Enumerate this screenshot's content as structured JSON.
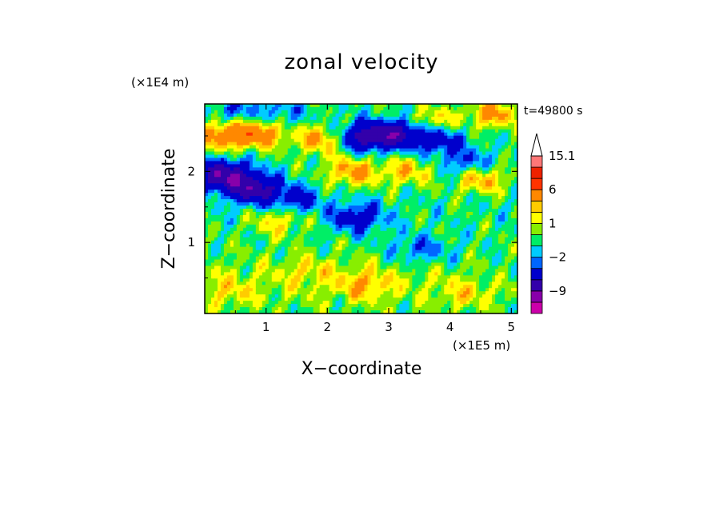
{
  "chart_data": {
    "type": "heatmap",
    "title": "zonal velocity",
    "xlabel": "X−coordinate",
    "ylabel": "Z−coordinate",
    "x_unit": "(×1E5 m)",
    "y_unit": "(×1E4 m)",
    "time_label": "t=49800 s",
    "xlim": [
      0,
      5.1
    ],
    "ylim": [
      0,
      2.95
    ],
    "x_ticks": [
      {
        "value": 1,
        "label": "1"
      },
      {
        "value": 2,
        "label": "2"
      },
      {
        "value": 3,
        "label": "3"
      },
      {
        "value": 4,
        "label": "4"
      },
      {
        "value": 5,
        "label": "5"
      }
    ],
    "y_ticks": [
      {
        "value": 1,
        "label": "1"
      },
      {
        "value": 2,
        "label": "2"
      }
    ],
    "colorbar": {
      "levels": [
        -15,
        -12,
        -9,
        -6,
        -3,
        -2,
        -1,
        0,
        1,
        2,
        3,
        6,
        9,
        12,
        15.1
      ],
      "colors": [
        "#ee00bb",
        "#cc00aa",
        "#8800aa",
        "#3300aa",
        "#0000cc",
        "#0066ff",
        "#00ccff",
        "#00ee66",
        "#88ee00",
        "#ffff00",
        "#ffcc00",
        "#ff8800",
        "#ff3300",
        "#ee2200",
        "#ff7777",
        "#ffbbbb"
      ],
      "labels": [
        {
          "value": 15.1,
          "label": "15.1"
        },
        {
          "value": 6,
          "label": "6"
        },
        {
          "value": 1,
          "label": "1"
        },
        {
          "value": -2,
          "label": "−2"
        },
        {
          "value": -9,
          "label": "−9"
        }
      ]
    },
    "field_features": [
      {
        "x": 0.3,
        "z": 2.5,
        "u": 5
      },
      {
        "x": 0.9,
        "z": 2.55,
        "u": 5
      },
      {
        "x": 1.9,
        "z": 2.45,
        "u": 4
      },
      {
        "x": 2.9,
        "z": 2.6,
        "u": 3
      },
      {
        "x": 3.7,
        "z": 2.7,
        "u": 3
      },
      {
        "x": 4.7,
        "z": 2.8,
        "u": 4
      },
      {
        "x": 2.6,
        "z": 2.5,
        "u": -7
      },
      {
        "x": 3.1,
        "z": 2.55,
        "u": -8
      },
      {
        "x": 3.8,
        "z": 2.45,
        "u": -4
      },
      {
        "x": 0.3,
        "z": 1.95,
        "u": -8
      },
      {
        "x": 0.8,
        "z": 1.75,
        "u": -7
      },
      {
        "x": 1.5,
        "z": 1.6,
        "u": -3
      },
      {
        "x": 2.5,
        "z": 1.35,
        "u": -4
      },
      {
        "x": 4.3,
        "z": 2.1,
        "u": -3
      },
      {
        "x": 1.2,
        "z": 2.8,
        "u": -2
      },
      {
        "x": 0.5,
        "z": 2.85,
        "u": -2
      },
      {
        "x": 2.4,
        "z": 2.0,
        "u": 4
      },
      {
        "x": 3.3,
        "z": 2.0,
        "u": 3
      },
      {
        "x": 4.5,
        "z": 1.9,
        "u": 4
      },
      {
        "x": 3.4,
        "z": 0.9,
        "u": -2
      },
      {
        "x": 3.9,
        "z": 0.85,
        "u": -1
      },
      {
        "x": 4.9,
        "z": 0.6,
        "u": -1
      },
      {
        "x": 0.6,
        "z": 1.0,
        "u": 0
      },
      {
        "x": 1.7,
        "z": 0.6,
        "u": 1.5
      },
      {
        "x": 2.6,
        "z": 0.4,
        "u": 2.5
      },
      {
        "x": 0.4,
        "z": 0.3,
        "u": 1.5
      },
      {
        "x": 4.2,
        "z": 0.25,
        "u": 1.5
      },
      {
        "x": 4.8,
        "z": 1.4,
        "u": 0
      },
      {
        "x": 1.2,
        "z": 1.3,
        "u": 2.5
      }
    ]
  }
}
